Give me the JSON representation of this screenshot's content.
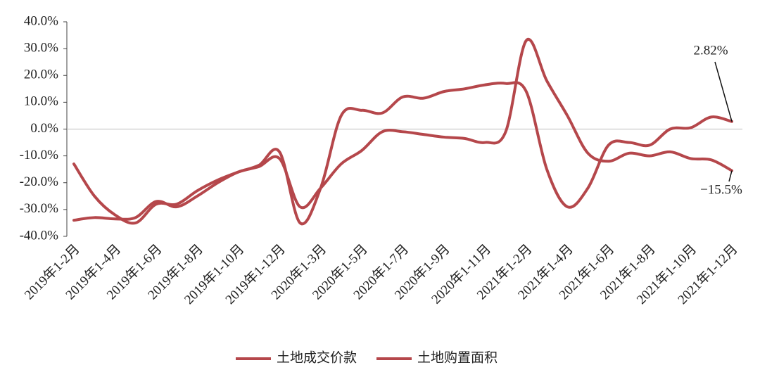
{
  "chart_data": {
    "type": "line",
    "categories": [
      "2019年1-2月",
      null,
      "2019年1-4月",
      null,
      "2019年1-6月",
      null,
      "2019年1-8月",
      null,
      "2019年1-10月",
      null,
      "2019年1-12月",
      null,
      "2020年1-3月",
      null,
      "2020年1-5月",
      null,
      "2020年1-7月",
      null,
      "2020年1-9月",
      null,
      "2020年1-11月",
      null,
      "2021年1-2月",
      null,
      "2021年1-4月",
      null,
      "2021年1-6月",
      null,
      "2021年1-8月",
      null,
      "2021年1-10月",
      null,
      "2021年1-12月"
    ],
    "series": [
      {
        "name": "土地成交价款",
        "color": "#b5474b",
        "values": [
          -13,
          -25,
          -32,
          -35,
          -28,
          -28,
          -23,
          -19,
          -16,
          -13.5,
          -8.5,
          -35,
          -22,
          5,
          7,
          6,
          12,
          11.5,
          14,
          15,
          16.5,
          17,
          14,
          -15,
          -29,
          -22,
          -6,
          -5,
          -6,
          0,
          0.5,
          4.5,
          2.82
        ],
        "value_labels": [
          null,
          null,
          null,
          null,
          null,
          null,
          null,
          null,
          null,
          null,
          null,
          null,
          null,
          null,
          null,
          null,
          null,
          null,
          null,
          null,
          null,
          null,
          null,
          null,
          null,
          null,
          null,
          null,
          null,
          null,
          null,
          null,
          "2.82%"
        ]
      },
      {
        "name": "土地购置面积",
        "color": "#b5474b",
        "values": [
          -34,
          -33,
          -33.5,
          -33,
          -27,
          -29,
          -25,
          -20,
          -16,
          -14,
          -11,
          -29,
          -22,
          -13,
          -8,
          -1,
          -1,
          -2,
          -3,
          -3.5,
          -5,
          -1,
          33,
          18,
          5,
          -9,
          -12,
          -9,
          -10,
          -8.5,
          -11,
          -11.5,
          -15.5
        ],
        "value_labels": [
          null,
          null,
          null,
          null,
          null,
          null,
          null,
          null,
          null,
          null,
          null,
          null,
          null,
          null,
          null,
          null,
          null,
          null,
          null,
          null,
          null,
          null,
          null,
          null,
          null,
          null,
          null,
          null,
          null,
          null,
          null,
          null,
          "−15.5%"
        ]
      }
    ],
    "ylim": [
      -40,
      40
    ],
    "yticks": [
      {
        "value": -40,
        "label": "-40.0%"
      },
      {
        "value": -30,
        "label": "-30.0%"
      },
      {
        "value": -20,
        "label": "-20.0%"
      },
      {
        "value": -10,
        "label": "-10.0%"
      },
      {
        "value": 0,
        "label": "0.0%"
      },
      {
        "value": 10,
        "label": "10.0%"
      },
      {
        "value": 20,
        "label": "20.0%"
      },
      {
        "value": 30,
        "label": "30.0%"
      },
      {
        "value": 40,
        "label": "40.0%"
      }
    ],
    "legend": "bottom"
  }
}
